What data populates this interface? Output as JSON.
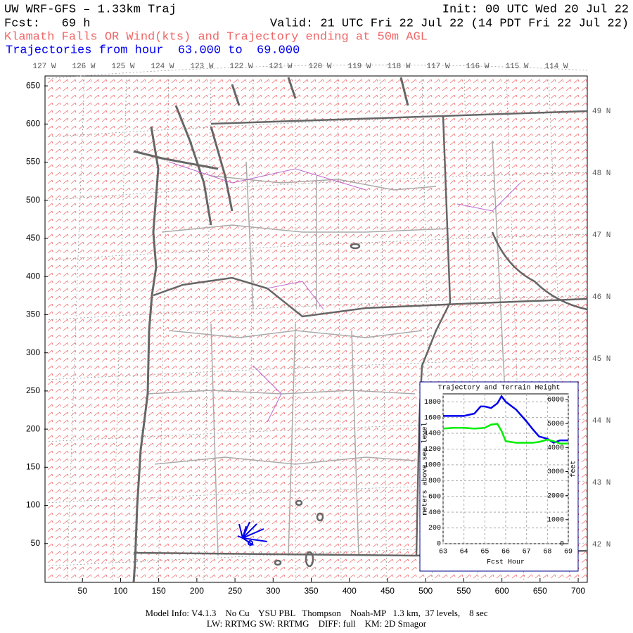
{
  "header": {
    "title": "UW WRF-GFS – 1.33km Traj",
    "init": "Init: 00 UTC Wed 20 Jul 22",
    "forecast": "Fcst:   69 h",
    "valid": "Valid: 21 UTC Fri 22 Jul 22 (14 PDT Fri 22 Jul 22)",
    "subtitle": "Klamath Falls OR Wind(kts) and Trajectory ending at 50m AGL",
    "trajectory_range": "Trajectories from hour  63.000 to  69.000"
  },
  "map_axes": {
    "xlim": [
      0,
      711
    ],
    "ylim": [
      0,
      663
    ],
    "xticks": [
      50,
      100,
      150,
      200,
      250,
      300,
      350,
      400,
      450,
      500,
      550,
      600,
      650,
      700
    ],
    "yticks": [
      50,
      100,
      150,
      200,
      250,
      300,
      350,
      400,
      450,
      500,
      550,
      600,
      650
    ],
    "lon_labels": [
      "127 W",
      "126 W",
      "125 W",
      "124 W",
      "123 W",
      "122 W",
      "121 W",
      "120 W",
      "119 W",
      "118 W",
      "117 W",
      "116 W",
      "115 W",
      "114 W"
    ],
    "lat_labels": [
      "49 N",
      "48 N",
      "47 N",
      "46 N",
      "45 N",
      "44 N",
      "43 N",
      "42 N"
    ]
  },
  "chart_data": {
    "type": "line",
    "title": "Trajectory and Terrain Height",
    "x_label": "Fcst Hour",
    "y_label": "meters above sea level",
    "y2_label": "feet",
    "xlim": [
      63,
      69
    ],
    "xticks": [
      63,
      64,
      65,
      66,
      67,
      68,
      69
    ],
    "ylim": [
      0,
      1900
    ],
    "yticks": [
      0,
      200,
      400,
      600,
      800,
      1000,
      1200,
      1400,
      1600,
      1800
    ],
    "y2lim": [
      0,
      6234
    ],
    "y2ticks": [
      0,
      1000,
      2000,
      3000,
      4000,
      5000,
      6000
    ],
    "grid": true,
    "x": [
      63,
      63.5,
      64,
      64.5,
      64.8,
      65,
      65.3,
      65.6,
      65.8,
      66,
      66.5,
      67,
      67.3,
      67.6,
      68,
      68.3,
      68.6,
      69
    ],
    "series": [
      {
        "name": "trajectory",
        "color": "#0000ee",
        "values": [
          1620,
          1620,
          1620,
          1650,
          1740,
          1740,
          1720,
          1780,
          1870,
          1800,
          1700,
          1550,
          1450,
          1360,
          1330,
          1280,
          1310,
          1310
        ]
      },
      {
        "name": "terrain",
        "color": "#00ee00",
        "values": [
          1460,
          1470,
          1470,
          1460,
          1465,
          1470,
          1510,
          1520,
          1430,
          1300,
          1280,
          1280,
          1280,
          1290,
          1320,
          1300,
          1270,
          1270
        ]
      }
    ]
  },
  "footer": {
    "line1": "Model Info: V4.1.3    No Cu    YSU PBL   Thompson    Noah-MP   1.3 km,  37 levels,    8 sec",
    "line2": "LW: RRTMG SW: RRTMG    DIFF: full    KM: 2D Smagor"
  }
}
